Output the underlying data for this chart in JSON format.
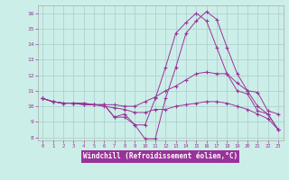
{
  "xlabel": "Windchill (Refroidissement éolien,°C)",
  "bg_color": "#cceee8",
  "line_color": "#993399",
  "grid_color": "#aacccc",
  "axis_label_bg": "#993399",
  "axis_label_fg": "#ffffff",
  "xlim": [
    -0.5,
    23.5
  ],
  "ylim": [
    7.8,
    16.5
  ],
  "xticks": [
    0,
    1,
    2,
    3,
    4,
    5,
    6,
    7,
    8,
    9,
    10,
    11,
    12,
    13,
    14,
    15,
    16,
    17,
    18,
    19,
    20,
    21,
    22,
    23
  ],
  "yticks": [
    8,
    9,
    10,
    11,
    12,
    13,
    14,
    15,
    16
  ],
  "series": [
    [
      10.5,
      10.3,
      10.2,
      10.2,
      10.2,
      10.1,
      10.1,
      9.3,
      9.5,
      8.8,
      8.8,
      10.5,
      12.5,
      14.7,
      15.4,
      16.0,
      15.5,
      13.8,
      12.1,
      11.0,
      10.8,
      9.7,
      9.5,
      8.5
    ],
    [
      10.5,
      10.3,
      10.2,
      10.2,
      10.2,
      10.1,
      10.1,
      9.3,
      9.3,
      8.8,
      7.9,
      7.9,
      10.5,
      12.5,
      14.7,
      15.5,
      16.1,
      15.6,
      13.8,
      12.1,
      11.0,
      10.9,
      9.7,
      9.5
    ],
    [
      10.5,
      10.3,
      10.2,
      10.2,
      10.1,
      10.1,
      10.1,
      10.1,
      10.0,
      10.0,
      10.3,
      10.6,
      11.0,
      11.3,
      11.7,
      12.1,
      12.2,
      12.1,
      12.1,
      11.5,
      11.0,
      10.0,
      9.5,
      8.5
    ],
    [
      10.5,
      10.3,
      10.2,
      10.2,
      10.1,
      10.1,
      10.0,
      9.9,
      9.8,
      9.6,
      9.6,
      9.8,
      9.8,
      10.0,
      10.1,
      10.2,
      10.3,
      10.3,
      10.2,
      10.0,
      9.8,
      9.5,
      9.2,
      8.5
    ]
  ]
}
